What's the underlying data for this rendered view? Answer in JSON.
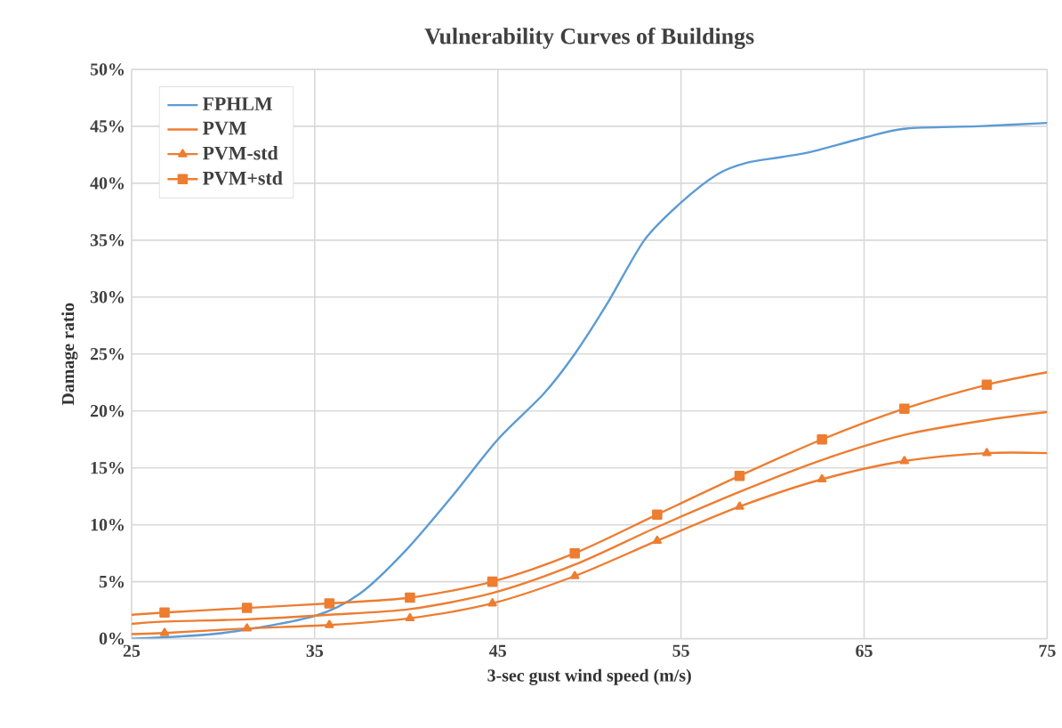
{
  "chart_data": {
    "type": "line",
    "title": "Vulnerability Curves of Buildings",
    "xlabel": "3-sec gust wind speed (m/s)",
    "ylabel": "Damage ratio",
    "xlim": [
      25,
      75
    ],
    "xticks": [
      25,
      35,
      45,
      55,
      65,
      75
    ],
    "ylim": [
      0,
      50
    ],
    "yticks": [
      {
        "value": 0,
        "label": "0%"
      },
      {
        "value": 5,
        "label": "5%"
      },
      {
        "value": 10,
        "label": "10%"
      },
      {
        "value": 15,
        "label": "15%"
      },
      {
        "value": 20,
        "label": "20%"
      },
      {
        "value": 25,
        "label": "25%"
      },
      {
        "value": 30,
        "label": "30%"
      },
      {
        "value": 35,
        "label": "35%"
      },
      {
        "value": 40,
        "label": "40%"
      },
      {
        "value": 45,
        "label": "45%"
      },
      {
        "value": 50,
        "label": "50%"
      }
    ],
    "grid": true,
    "legend": "top left",
    "line_style": "solid",
    "series": [
      {
        "name": "FPHLM",
        "color": "#5b9bd5",
        "marker": "none",
        "x": [
          25,
          30,
          35,
          37.5,
          40,
          42.5,
          45,
          47.5,
          49.2,
          51,
          53,
          55,
          57,
          58.6,
          60.5,
          62.2,
          65,
          67.3,
          71.2,
          75
        ],
        "values": [
          0,
          0.5,
          2.0,
          4,
          7.8,
          12.5,
          17.5,
          21.5,
          25,
          29.5,
          35,
          38.3,
          40.8,
          41.8,
          42.3,
          42.8,
          44,
          44.8,
          45,
          45.3
        ]
      },
      {
        "name": "PVM",
        "color": "#ed7d31",
        "marker": "none",
        "x": [
          25,
          26.8,
          31.3,
          35.8,
          40.2,
          44.7,
          49.2,
          53.7,
          58.2,
          62.7,
          67.2,
          71.7,
          75
        ],
        "values": [
          1.3,
          1.5,
          1.7,
          2.1,
          2.6,
          4.0,
          6.5,
          9.8,
          12.9,
          15.7,
          17.9,
          19.2,
          19.9
        ]
      },
      {
        "name": "PVM-std",
        "color": "#ed7d31",
        "marker": "triangle",
        "x": [
          25,
          26.8,
          31.3,
          35.8,
          40.2,
          44.7,
          49.2,
          53.7,
          58.2,
          62.7,
          67.2,
          71.7,
          75
        ],
        "values": [
          0.4,
          0.5,
          0.9,
          1.2,
          1.8,
          3.1,
          5.5,
          8.6,
          11.6,
          14.0,
          15.6,
          16.3,
          16.3
        ]
      },
      {
        "name": "PVM+std",
        "color": "#ed7d31",
        "marker": "square",
        "x": [
          25,
          26.8,
          31.3,
          35.8,
          40.2,
          44.7,
          49.2,
          53.7,
          58.2,
          62.7,
          67.2,
          71.7,
          75
        ],
        "values": [
          2.1,
          2.3,
          2.7,
          3.1,
          3.6,
          5.0,
          7.5,
          10.9,
          14.3,
          17.5,
          20.2,
          22.3,
          23.4
        ]
      }
    ]
  }
}
